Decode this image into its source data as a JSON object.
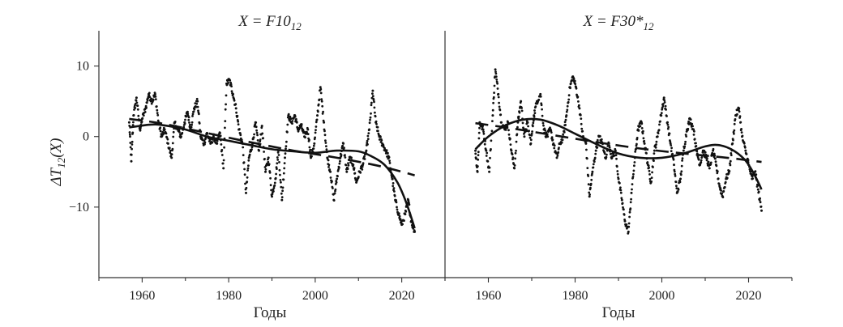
{
  "chart_data": [
    {
      "type": "scatter",
      "title_prefix": "X = F10",
      "title_sub": "12",
      "xlabel": "Годы",
      "ylabel_prefix": "ΔT",
      "ylabel_sub": "12",
      "ylabel_suffix": "(X)",
      "xlim": [
        1950,
        2030
      ],
      "ylim": [
        -20,
        15
      ],
      "xticks": [
        1960,
        1980,
        2000,
        2020
      ],
      "yticks": [
        10,
        0,
        -10
      ],
      "ytick_labels": [
        "10",
        "0",
        "−10"
      ],
      "grid": false,
      "points_anchor": [
        [
          1957,
          2.0
        ],
        [
          1957.5,
          -3.5
        ],
        [
          1958,
          3.0
        ],
        [
          1958.7,
          5.5
        ],
        [
          1959.5,
          1.0
        ],
        [
          1960,
          2.5
        ],
        [
          1960.8,
          4.0
        ],
        [
          1961.5,
          6.0
        ],
        [
          1962.3,
          5.0
        ],
        [
          1963.0,
          6.0
        ],
        [
          1963.8,
          2.0
        ],
        [
          1964.5,
          0.0
        ],
        [
          1965.2,
          1.0
        ],
        [
          1966.0,
          -1.0
        ],
        [
          1966.8,
          -3.0
        ],
        [
          1967.5,
          2.0
        ],
        [
          1968.2,
          1.0
        ],
        [
          1969.0,
          0.0
        ],
        [
          1969.8,
          2.0
        ],
        [
          1970.5,
          3.5
        ],
        [
          1971.2,
          1.0
        ],
        [
          1972.0,
          4.0
        ],
        [
          1972.8,
          5.0
        ],
        [
          1973.5,
          0.0
        ],
        [
          1974.3,
          -1.0
        ],
        [
          1975.0,
          0.5
        ],
        [
          1975.8,
          -1.0
        ],
        [
          1976.5,
          0.0
        ],
        [
          1977.3,
          -1.0
        ],
        [
          1978.0,
          0.5
        ],
        [
          1978.8,
          -4.5
        ],
        [
          1979.5,
          7.5
        ],
        [
          1980.2,
          8.0
        ],
        [
          1981.0,
          6.0
        ],
        [
          1981.7,
          4.0
        ],
        [
          1982.4,
          1.0
        ],
        [
          1983.2,
          -1.0
        ],
        [
          1984.0,
          -8.0
        ],
        [
          1984.7,
          -3.0
        ],
        [
          1985.5,
          -1.0
        ],
        [
          1986.2,
          2.0
        ],
        [
          1987.0,
          -2.0
        ],
        [
          1987.7,
          1.5
        ],
        [
          1988.5,
          -5.0
        ],
        [
          1989.2,
          -3.0
        ],
        [
          1990.0,
          -8.5
        ],
        [
          1990.8,
          -6.0
        ],
        [
          1991.5,
          -2.0
        ],
        [
          1992.3,
          -9.0
        ],
        [
          1993.0,
          -3.0
        ],
        [
          1993.8,
          3.0
        ],
        [
          1994.5,
          2.0
        ],
        [
          1995.3,
          3.0
        ],
        [
          1996.0,
          1.0
        ],
        [
          1996.8,
          1.5
        ],
        [
          1997.5,
          0.0
        ],
        [
          1998.3,
          1.0
        ],
        [
          1999.0,
          -3.0
        ],
        [
          1999.8,
          -1.0
        ],
        [
          2000.5,
          3.0
        ],
        [
          2001.2,
          7.0
        ],
        [
          2002.0,
          2.0
        ],
        [
          2002.8,
          -3.0
        ],
        [
          2003.5,
          -5.0
        ],
        [
          2004.3,
          -9.0
        ],
        [
          2005.0,
          -6.0
        ],
        [
          2005.8,
          -3.0
        ],
        [
          2006.5,
          -1.0
        ],
        [
          2007.3,
          -5.0
        ],
        [
          2008.0,
          -3.0
        ],
        [
          2008.8,
          -4.0
        ],
        [
          2009.5,
          -6.5
        ],
        [
          2010.3,
          -5.0
        ],
        [
          2011.0,
          -4.0
        ],
        [
          2011.8,
          -2.0
        ],
        [
          2012.5,
          1.0
        ],
        [
          2013.3,
          6.5
        ],
        [
          2014.0,
          2.0
        ],
        [
          2014.8,
          0.0
        ],
        [
          2015.5,
          -1.0
        ],
        [
          2016.3,
          -2.0
        ],
        [
          2017.0,
          -3.0
        ],
        [
          2017.8,
          -6.0
        ],
        [
          2018.5,
          -9.0
        ],
        [
          2019.3,
          -11.0
        ],
        [
          2020.0,
          -12.5
        ],
        [
          2020.8,
          -11.0
        ],
        [
          2021.5,
          -9.0
        ],
        [
          2022.2,
          -12.0
        ],
        [
          2023.0,
          -13.5
        ]
      ],
      "solid_fit": {
        "x": [
          1957,
          1962,
          1965,
          1970,
          1975,
          1980,
          1985,
          1990,
          1995,
          2000,
          2005,
          2010,
          2013,
          2016,
          2019,
          2021,
          2023
        ],
        "y": [
          1.3,
          1.7,
          1.6,
          1.0,
          0.0,
          -0.6,
          -1.2,
          -1.8,
          -2.1,
          -2.3,
          -2.0,
          -2.1,
          -2.8,
          -4.0,
          -6.5,
          -9.3,
          -13.0
        ]
      },
      "dashed_fit": {
        "x": [
          1957,
          1965,
          1975,
          1985,
          1995,
          2005,
          2015,
          2023
        ],
        "y": [
          2.5,
          1.8,
          0.5,
          -0.8,
          -2.0,
          -3.0,
          -4.2,
          -5.5
        ]
      }
    },
    {
      "type": "scatter",
      "title_prefix": "X = F30*",
      "title_sub": "12",
      "xlabel": "Годы",
      "xlim": [
        1950,
        2030
      ],
      "ylim": [
        -20,
        15
      ],
      "xticks": [
        1960,
        1980,
        2000,
        2020
      ],
      "grid": false,
      "points_anchor": [
        [
          1957,
          -2.0
        ],
        [
          1957.5,
          -5.0
        ],
        [
          1958,
          2.0
        ],
        [
          1958.8,
          1.0
        ],
        [
          1959.5,
          -2.0
        ],
        [
          1960.2,
          -5.0
        ],
        [
          1961.0,
          3.0
        ],
        [
          1961.6,
          9.5
        ],
        [
          1962.3,
          6.0
        ],
        [
          1963.0,
          2.0
        ],
        [
          1963.8,
          1.0
        ],
        [
          1964.5,
          2.0
        ],
        [
          1965.3,
          -2.0
        ],
        [
          1966.0,
          -4.5
        ],
        [
          1966.8,
          2.0
        ],
        [
          1967.5,
          5.0
        ],
        [
          1968.3,
          0.0
        ],
        [
          1969.0,
          2.0
        ],
        [
          1969.8,
          -1.0
        ],
        [
          1970.5,
          3.0
        ],
        [
          1971.2,
          5.0
        ],
        [
          1972.0,
          6.0
        ],
        [
          1972.8,
          1.0
        ],
        [
          1973.5,
          0.0
        ],
        [
          1974.3,
          1.0
        ],
        [
          1975.0,
          -1.0
        ],
        [
          1975.8,
          -3.0
        ],
        [
          1976.5,
          -1.0
        ],
        [
          1977.3,
          0.0
        ],
        [
          1978.0,
          3.0
        ],
        [
          1978.8,
          7.0
        ],
        [
          1979.5,
          8.5
        ],
        [
          1980.2,
          7.0
        ],
        [
          1981.0,
          4.0
        ],
        [
          1981.8,
          0.0
        ],
        [
          1982.5,
          -1.0
        ],
        [
          1983.3,
          -8.5
        ],
        [
          1984.0,
          -5.0
        ],
        [
          1984.8,
          -2.0
        ],
        [
          1985.5,
          0.0
        ],
        [
          1986.3,
          -1.0
        ],
        [
          1987.0,
          -3.0
        ],
        [
          1987.8,
          -1.0
        ],
        [
          1988.5,
          -3.0
        ],
        [
          1989.3,
          -2.0
        ],
        [
          1990.0,
          -6.0
        ],
        [
          1990.8,
          -9.0
        ],
        [
          1991.5,
          -12.0
        ],
        [
          1992.3,
          -13.5
        ],
        [
          1993.0,
          -8.0
        ],
        [
          1993.8,
          -3.0
        ],
        [
          1994.5,
          1.0
        ],
        [
          1995.3,
          2.0
        ],
        [
          1996.0,
          -1.0
        ],
        [
          1996.8,
          -4.0
        ],
        [
          1997.5,
          -6.5
        ],
        [
          1998.3,
          -2.0
        ],
        [
          1999.0,
          0.0
        ],
        [
          1999.8,
          3.0
        ],
        [
          2000.5,
          5.5
        ],
        [
          2001.3,
          2.0
        ],
        [
          2002.0,
          -1.0
        ],
        [
          2002.8,
          -4.0
        ],
        [
          2003.5,
          -8.0
        ],
        [
          2004.3,
          -6.0
        ],
        [
          2005.0,
          -2.0
        ],
        [
          2005.8,
          1.0
        ],
        [
          2006.5,
          2.5
        ],
        [
          2007.3,
          1.0
        ],
        [
          2008.0,
          -2.0
        ],
        [
          2008.8,
          -4.0
        ],
        [
          2009.5,
          -2.0
        ],
        [
          2010.3,
          -3.0
        ],
        [
          2011.0,
          -4.5
        ],
        [
          2011.8,
          -2.0
        ],
        [
          2012.5,
          -4.0
        ],
        [
          2013.3,
          -7.0
        ],
        [
          2014.0,
          -8.5
        ],
        [
          2014.8,
          -6.0
        ],
        [
          2015.5,
          -5.0
        ],
        [
          2016.3,
          -1.0
        ],
        [
          2017.0,
          3.0
        ],
        [
          2017.8,
          4.0
        ],
        [
          2018.5,
          0.0
        ],
        [
          2019.3,
          -2.0
        ],
        [
          2020.0,
          -4.0
        ],
        [
          2020.8,
          -6.0
        ],
        [
          2021.5,
          -5.0
        ],
        [
          2022.2,
          -7.5
        ],
        [
          2023.0,
          -10.5
        ]
      ],
      "solid_fit": {
        "x": [
          1957,
          1960,
          1964,
          1968,
          1972,
          1976,
          1980,
          1985,
          1990,
          1995,
          2000,
          2005,
          2010,
          2013,
          2016,
          2019,
          2021,
          2023
        ],
        "y": [
          -1.8,
          0.0,
          1.6,
          2.4,
          2.4,
          1.6,
          0.4,
          -1.1,
          -2.4,
          -3.0,
          -3.0,
          -2.4,
          -1.4,
          -1.2,
          -1.8,
          -3.2,
          -5.0,
          -7.5
        ]
      },
      "dashed_fit": {
        "x": [
          1957,
          1965,
          1975,
          1985,
          1995,
          2005,
          2015,
          2023
        ],
        "y": [
          1.9,
          1.2,
          0.2,
          -0.8,
          -1.7,
          -2.4,
          -3.0,
          -3.6
        ]
      }
    }
  ]
}
